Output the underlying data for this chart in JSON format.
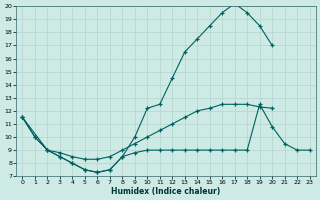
{
  "xlabel": "Humidex (Indice chaleur)",
  "background_color": "#cdeae5",
  "grid_color": "#b8d8d3",
  "line_color": "#006060",
  "curve1_x": [
    0,
    1,
    2,
    3,
    4,
    5,
    6,
    7,
    8,
    9,
    10,
    11,
    12,
    13,
    14,
    15,
    16,
    17,
    18,
    19,
    20
  ],
  "curve1_y": [
    11.5,
    10.0,
    9.0,
    8.5,
    8.0,
    7.5,
    7.3,
    7.5,
    8.5,
    10.0,
    12.2,
    12.5,
    14.5,
    16.5,
    17.5,
    18.5,
    19.5,
    20.2,
    19.5,
    18.5,
    17.0
  ],
  "curve2_x": [
    0,
    1,
    2,
    3,
    4,
    5,
    6,
    7,
    8,
    9,
    10,
    11,
    12,
    13,
    14,
    15,
    16,
    17,
    18,
    19,
    20
  ],
  "curve2_y": [
    11.5,
    10.0,
    9.0,
    8.8,
    8.5,
    8.3,
    8.3,
    8.5,
    9.0,
    9.5,
    10.0,
    10.5,
    11.0,
    11.5,
    12.0,
    12.2,
    12.5,
    12.5,
    12.5,
    12.3,
    12.2
  ],
  "curve3_x": [
    0,
    2,
    3,
    4,
    5,
    6,
    7,
    8,
    9,
    10,
    11,
    12,
    13,
    14,
    15,
    16,
    17,
    18,
    19,
    20,
    21,
    22,
    23
  ],
  "curve3_y": [
    11.5,
    9.0,
    8.5,
    8.0,
    7.5,
    7.3,
    7.5,
    8.5,
    8.8,
    9.0,
    9.0,
    9.0,
    9.0,
    9.0,
    9.0,
    9.0,
    9.0,
    9.0,
    12.5,
    10.8,
    9.5,
    9.0,
    9.0
  ],
  "xlim": [
    -0.5,
    23.5
  ],
  "ylim": [
    7,
    20
  ],
  "yticks": [
    7,
    8,
    9,
    10,
    11,
    12,
    13,
    14,
    15,
    16,
    17,
    18,
    19,
    20
  ],
  "xticks": [
    0,
    1,
    2,
    3,
    4,
    5,
    6,
    7,
    8,
    9,
    10,
    11,
    12,
    13,
    14,
    15,
    16,
    17,
    18,
    19,
    20,
    21,
    22,
    23
  ]
}
